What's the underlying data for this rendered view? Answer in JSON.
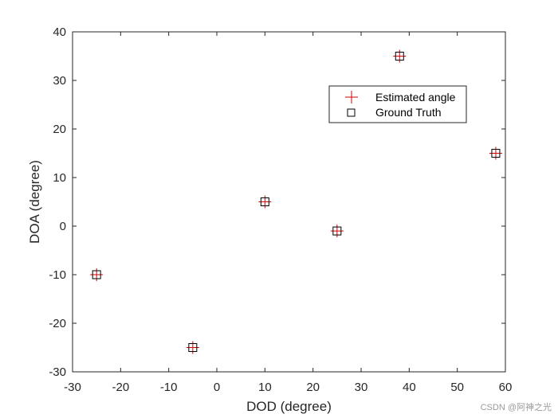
{
  "chart_data": {
    "type": "scatter",
    "xlabel": "DOD (degree)",
    "ylabel": "DOA (degree)",
    "xlim": [
      -30,
      60
    ],
    "ylim": [
      -30,
      40
    ],
    "xticks": [
      -30,
      -20,
      -10,
      0,
      10,
      20,
      30,
      40,
      50,
      60
    ],
    "yticks": [
      -30,
      -20,
      -10,
      0,
      10,
      20,
      30,
      40
    ],
    "xtick_labels": [
      "-30",
      "-20",
      "-10",
      "0",
      "10",
      "20",
      "30",
      "40",
      "50",
      "60"
    ],
    "ytick_labels": [
      "-30",
      "-20",
      "-10",
      "0",
      "10",
      "20",
      "30",
      "40"
    ],
    "grid": false,
    "legend_position": "upper-right-inside",
    "series": [
      {
        "name": "Estimated angle",
        "marker": "plus",
        "color": "#d00000",
        "points": [
          [
            -25,
            -10
          ],
          [
            -5,
            -25
          ],
          [
            10,
            5
          ],
          [
            25,
            -1
          ],
          [
            38,
            35
          ],
          [
            58,
            15
          ]
        ]
      },
      {
        "name": "Ground Truth",
        "marker": "square",
        "color": "#000000",
        "points": [
          [
            -25,
            -10
          ],
          [
            -5,
            -25
          ],
          [
            10,
            5
          ],
          [
            25,
            -1
          ],
          [
            38,
            35
          ],
          [
            58,
            15
          ]
        ]
      }
    ]
  },
  "watermark": "CSDN @阿神之光"
}
